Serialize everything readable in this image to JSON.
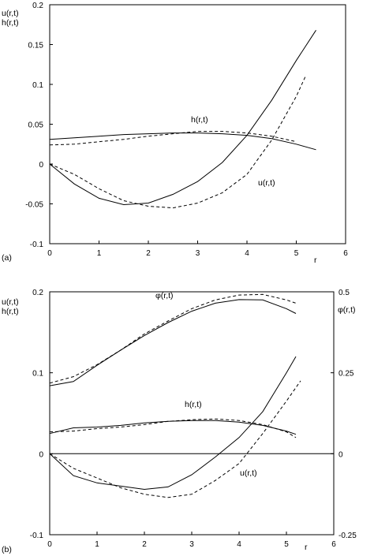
{
  "chart_data": [
    {
      "type": "line",
      "panel_label": "(a)",
      "ylabel": "u(r,t)\nh(r,t)",
      "xlabel": "r",
      "xlim": [
        0,
        6
      ],
      "ylim": [
        -0.1,
        0.2
      ],
      "x_ticks": [
        "0",
        "1",
        "2",
        "3",
        "4",
        "5",
        "6"
      ],
      "y_ticks": [
        "-0.1",
        "-0.05",
        "0",
        "0.05",
        "0.1",
        "0.15",
        "0.2"
      ],
      "annotations": [
        "h(r,t)",
        "u(r,t)"
      ],
      "series": [
        {
          "style": "solid",
          "x": [
            0,
            0.5,
            1,
            1.5,
            2,
            2.5,
            3,
            3.5,
            4,
            4.5,
            5,
            5.4
          ],
          "y": [
            0.031,
            0.033,
            0.035,
            0.037,
            0.038,
            0.039,
            0.039,
            0.038,
            0.036,
            0.032,
            0.025,
            0.018
          ]
        },
        {
          "style": "dashed",
          "x": [
            0,
            0.5,
            1,
            1.5,
            2,
            2.5,
            3,
            3.5,
            4,
            4.5,
            5
          ],
          "y": [
            0.024,
            0.025,
            0.028,
            0.031,
            0.035,
            0.038,
            0.041,
            0.041,
            0.039,
            0.035,
            0.028
          ]
        },
        {
          "style": "solid",
          "x": [
            0,
            0.5,
            1,
            1.5,
            2,
            2.5,
            3,
            3.5,
            4,
            4.5,
            5,
            5.4
          ],
          "y": [
            0,
            -0.025,
            -0.043,
            -0.051,
            -0.049,
            -0.038,
            -0.022,
            0.002,
            0.036,
            0.08,
            0.13,
            0.168
          ]
        },
        {
          "style": "dashed",
          "x": [
            0,
            0.5,
            1,
            1.5,
            2,
            2.5,
            3,
            3.5,
            4,
            4.5,
            5,
            5.2
          ],
          "y": [
            0,
            -0.013,
            -0.031,
            -0.046,
            -0.053,
            -0.055,
            -0.049,
            -0.036,
            -0.013,
            0.03,
            0.085,
            0.112
          ]
        }
      ]
    },
    {
      "type": "line",
      "panel_label": "(b)",
      "ylabel": "u(r,t)\nh(r,t)",
      "y2label": "φ(r,t)",
      "xlabel": "r",
      "xlim": [
        0,
        6
      ],
      "ylim": [
        -0.1,
        0.2
      ],
      "y2lim": [
        -0.25,
        0.5
      ],
      "x_ticks": [
        "0",
        "1",
        "2",
        "3",
        "4",
        "5",
        "6"
      ],
      "y_ticks": [
        "-0.1",
        "0",
        "0.1",
        "0.2"
      ],
      "y2_ticks": [
        "-0.25",
        "0",
        "0.25",
        "0.5"
      ],
      "annotations": [
        "φ(r,t)",
        "h(r,t)",
        "u(r,t)"
      ],
      "series": [
        {
          "style": "solid",
          "axis": "y2",
          "x": [
            0,
            0.5,
            1,
            1.5,
            2,
            2.5,
            3,
            3.5,
            4,
            4.5,
            5,
            5.2
          ],
          "y": [
            0.21,
            0.223,
            0.273,
            0.32,
            0.365,
            0.405,
            0.44,
            0.465,
            0.476,
            0.475,
            0.448,
            0.433
          ]
        },
        {
          "style": "dashed",
          "axis": "y2",
          "x": [
            0,
            0.5,
            1,
            1.5,
            2,
            2.5,
            3,
            3.5,
            4,
            4.5,
            5,
            5.2
          ],
          "y": [
            0.218,
            0.238,
            0.275,
            0.32,
            0.37,
            0.41,
            0.448,
            0.475,
            0.49,
            0.492,
            0.475,
            0.465
          ]
        },
        {
          "style": "solid",
          "x": [
            0,
            0.5,
            1,
            1.5,
            2,
            2.5,
            3,
            3.5,
            4,
            4.5,
            5,
            5.2
          ],
          "y": [
            0.025,
            0.032,
            0.033,
            0.035,
            0.038,
            0.04,
            0.041,
            0.041,
            0.039,
            0.035,
            0.028,
            0.024
          ]
        },
        {
          "style": "dashed",
          "x": [
            0,
            0.5,
            1,
            1.5,
            2,
            2.5,
            3,
            3.5,
            4,
            4.5,
            5,
            5.2
          ],
          "y": [
            0.027,
            0.028,
            0.031,
            0.033,
            0.036,
            0.04,
            0.042,
            0.043,
            0.041,
            0.036,
            0.027,
            0.02
          ]
        },
        {
          "style": "solid",
          "x": [
            0,
            0.5,
            1,
            1.5,
            2,
            2.5,
            3,
            3.5,
            4,
            4.5,
            5,
            5.2
          ],
          "y": [
            0,
            -0.027,
            -0.036,
            -0.04,
            -0.044,
            -0.041,
            -0.026,
            -0.004,
            0.02,
            0.052,
            0.1,
            0.12
          ]
        },
        {
          "style": "dashed",
          "x": [
            0,
            0.5,
            1,
            1.5,
            2,
            2.5,
            3,
            3.5,
            4,
            4.5,
            5,
            5.3
          ],
          "y": [
            0,
            -0.018,
            -0.03,
            -0.042,
            -0.05,
            -0.054,
            -0.05,
            -0.033,
            -0.012,
            0.025,
            0.065,
            0.09
          ]
        },
        {
          "style": "solid",
          "x": [
            0,
            6
          ],
          "y": [
            0,
            0
          ]
        }
      ]
    }
  ]
}
